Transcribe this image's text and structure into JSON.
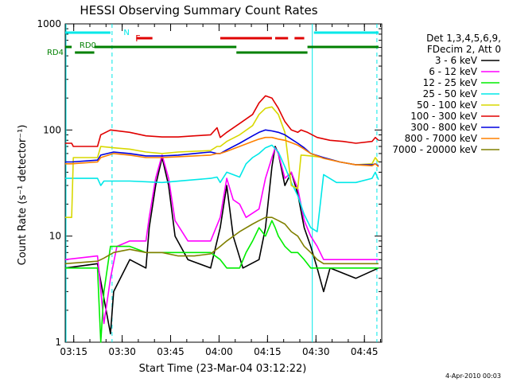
{
  "chart_data": {
    "type": "line",
    "title": "HESSI Observing Summary Count Rates",
    "xlabel": "Start Time (23-Mar-04 03:12:22)",
    "ylabel": "Count Rate (s⁻¹ detector⁻¹)",
    "y_scale": "log",
    "ylim": [
      1,
      1000
    ],
    "xlim_minutes": [
      0,
      98
    ],
    "x_ticks": [
      "03:15",
      "03:30",
      "03:45",
      "04:00",
      "04:15",
      "04:30",
      "04:45"
    ],
    "y_ticks": [
      "1",
      "10",
      "100",
      "1000"
    ],
    "footer": "4-Apr-2010 00:03",
    "legend": {
      "header": [
        "Det 1,3,4,5,6,9,",
        "FDecim 2, Att 0"
      ],
      "placement": "right"
    },
    "flags": [
      {
        "name": "N",
        "color": "#00e8e8"
      },
      {
        "name": "F",
        "color": "#e00000"
      },
      {
        "name": "RD0",
        "color": "#008000"
      },
      {
        "name": "RD4",
        "color": "#008000"
      }
    ],
    "series": [
      {
        "name": "3 - 6 keV",
        "color": "#000000",
        "points": [
          [
            0,
            5
          ],
          [
            10,
            5.5
          ],
          [
            14,
            1.2
          ],
          [
            15,
            3
          ],
          [
            20,
            6
          ],
          [
            25,
            5
          ],
          [
            26,
            12
          ],
          [
            28,
            30
          ],
          [
            30,
            55
          ],
          [
            32,
            30
          ],
          [
            34,
            10
          ],
          [
            38,
            6
          ],
          [
            45,
            5
          ],
          [
            48,
            12
          ],
          [
            50,
            30
          ],
          [
            52,
            10
          ],
          [
            55,
            5
          ],
          [
            60,
            6
          ],
          [
            62,
            12
          ],
          [
            64,
            45
          ],
          [
            65,
            70
          ],
          [
            66,
            60
          ],
          [
            68,
            30
          ],
          [
            70,
            40
          ],
          [
            72,
            25
          ],
          [
            74,
            12
          ],
          [
            76,
            8
          ],
          [
            78,
            5
          ],
          [
            80,
            3
          ],
          [
            82,
            5
          ],
          [
            90,
            4
          ],
          [
            97,
            5
          ]
        ]
      },
      {
        "name": "6 - 12 keV",
        "color": "#ff00ff",
        "points": [
          [
            0,
            6
          ],
          [
            10,
            6.5
          ],
          [
            12,
            1.5
          ],
          [
            14,
            4
          ],
          [
            16,
            8
          ],
          [
            20,
            9
          ],
          [
            25,
            9
          ],
          [
            26,
            15
          ],
          [
            28,
            35
          ],
          [
            30,
            58
          ],
          [
            32,
            35
          ],
          [
            34,
            14
          ],
          [
            38,
            9
          ],
          [
            45,
            9
          ],
          [
            48,
            15
          ],
          [
            50,
            35
          ],
          [
            52,
            22
          ],
          [
            54,
            20
          ],
          [
            56,
            15
          ],
          [
            60,
            18
          ],
          [
            62,
            35
          ],
          [
            64,
            55
          ],
          [
            65,
            68
          ],
          [
            66,
            60
          ],
          [
            68,
            35
          ],
          [
            70,
            40
          ],
          [
            72,
            28
          ],
          [
            74,
            14
          ],
          [
            76,
            10
          ],
          [
            78,
            8
          ],
          [
            80,
            6
          ],
          [
            82,
            6
          ],
          [
            90,
            6
          ],
          [
            97,
            6
          ]
        ]
      },
      {
        "name": "12 - 25 keV",
        "color": "#00ee00",
        "points": [
          [
            0,
            5
          ],
          [
            10,
            5
          ],
          [
            11,
            1
          ],
          [
            12,
            3
          ],
          [
            14,
            8
          ],
          [
            20,
            8
          ],
          [
            25,
            7
          ],
          [
            28,
            7
          ],
          [
            35,
            7
          ],
          [
            40,
            7
          ],
          [
            45,
            7
          ],
          [
            48,
            6
          ],
          [
            50,
            5
          ],
          [
            54,
            5
          ],
          [
            56,
            7
          ],
          [
            58,
            9
          ],
          [
            60,
            12
          ],
          [
            62,
            10
          ],
          [
            64,
            14
          ],
          [
            65,
            12
          ],
          [
            66,
            10
          ],
          [
            68,
            8
          ],
          [
            70,
            7
          ],
          [
            72,
            7
          ],
          [
            74,
            6
          ],
          [
            76,
            5
          ],
          [
            80,
            5
          ],
          [
            90,
            5
          ],
          [
            97,
            5
          ]
        ]
      },
      {
        "name": "25 - 50 keV",
        "color": "#00e8e8",
        "points": [
          [
            0,
            35
          ],
          [
            10,
            35
          ],
          [
            11,
            30
          ],
          [
            12,
            33
          ],
          [
            20,
            33
          ],
          [
            30,
            32
          ],
          [
            40,
            34
          ],
          [
            45,
            35
          ],
          [
            47,
            36
          ],
          [
            48,
            32
          ],
          [
            50,
            40
          ],
          [
            54,
            36
          ],
          [
            56,
            48
          ],
          [
            58,
            55
          ],
          [
            60,
            60
          ],
          [
            62,
            68
          ],
          [
            64,
            72
          ],
          [
            66,
            62
          ],
          [
            68,
            45
          ],
          [
            70,
            32
          ],
          [
            72,
            24
          ],
          [
            74,
            16
          ],
          [
            76,
            12
          ],
          [
            78,
            11
          ],
          [
            80,
            38
          ],
          [
            84,
            32
          ],
          [
            90,
            32
          ],
          [
            95,
            35
          ],
          [
            96,
            40
          ],
          [
            97,
            34
          ]
        ]
      },
      {
        "name": "50 - 100 keV",
        "color": "#d8d800",
        "points": [
          [
            0,
            15
          ],
          [
            2,
            15
          ],
          [
            2.5,
            55
          ],
          [
            10,
            55
          ],
          [
            11,
            70
          ],
          [
            15,
            68
          ],
          [
            20,
            66
          ],
          [
            25,
            62
          ],
          [
            30,
            60
          ],
          [
            35,
            62
          ],
          [
            40,
            63
          ],
          [
            45,
            64
          ],
          [
            47,
            70
          ],
          [
            48,
            70
          ],
          [
            50,
            78
          ],
          [
            54,
            90
          ],
          [
            58,
            110
          ],
          [
            60,
            140
          ],
          [
            62,
            160
          ],
          [
            64,
            165
          ],
          [
            66,
            140
          ],
          [
            68,
            95
          ],
          [
            70,
            30
          ],
          [
            72,
            28
          ],
          [
            73,
            58
          ],
          [
            76,
            57
          ],
          [
            80,
            55
          ],
          [
            85,
            50
          ],
          [
            90,
            47
          ],
          [
            95,
            48
          ],
          [
            96,
            55
          ],
          [
            97,
            50
          ]
        ]
      },
      {
        "name": "100 - 300 keV",
        "color": "#e00000",
        "points": [
          [
            0,
            75
          ],
          [
            2,
            75
          ],
          [
            2.5,
            70
          ],
          [
            10,
            70
          ],
          [
            11,
            90
          ],
          [
            14,
            100
          ],
          [
            20,
            95
          ],
          [
            25,
            88
          ],
          [
            30,
            86
          ],
          [
            35,
            86
          ],
          [
            40,
            88
          ],
          [
            45,
            90
          ],
          [
            47,
            105
          ],
          [
            48,
            85
          ],
          [
            50,
            95
          ],
          [
            54,
            115
          ],
          [
            58,
            140
          ],
          [
            60,
            180
          ],
          [
            62,
            210
          ],
          [
            64,
            200
          ],
          [
            66,
            160
          ],
          [
            68,
            120
          ],
          [
            70,
            100
          ],
          [
            72,
            95
          ],
          [
            73,
            100
          ],
          [
            75,
            95
          ],
          [
            78,
            85
          ],
          [
            82,
            80
          ],
          [
            86,
            78
          ],
          [
            90,
            75
          ],
          [
            95,
            78
          ],
          [
            96,
            85
          ],
          [
            97,
            80
          ]
        ]
      },
      {
        "name": "300 - 800 keV",
        "color": "#0000e0",
        "points": [
          [
            0,
            50
          ],
          [
            2,
            50
          ],
          [
            10,
            52
          ],
          [
            11,
            58
          ],
          [
            15,
            62
          ],
          [
            20,
            60
          ],
          [
            25,
            57
          ],
          [
            30,
            57
          ],
          [
            35,
            58
          ],
          [
            40,
            60
          ],
          [
            45,
            62
          ],
          [
            47,
            60
          ],
          [
            48,
            60
          ],
          [
            50,
            65
          ],
          [
            54,
            75
          ],
          [
            58,
            88
          ],
          [
            60,
            95
          ],
          [
            62,
            100
          ],
          [
            64,
            98
          ],
          [
            66,
            95
          ],
          [
            68,
            90
          ],
          [
            70,
            82
          ],
          [
            72,
            75
          ],
          [
            74,
            68
          ],
          [
            76,
            60
          ],
          [
            80,
            55
          ],
          [
            85,
            50
          ],
          [
            90,
            47
          ],
          [
            95,
            47
          ],
          [
            96,
            48
          ],
          [
            97,
            46
          ]
        ]
      },
      {
        "name": "800 - 7000 keV",
        "color": "#ff8000",
        "points": [
          [
            0,
            48
          ],
          [
            2,
            48
          ],
          [
            10,
            50
          ],
          [
            11,
            55
          ],
          [
            15,
            60
          ],
          [
            20,
            58
          ],
          [
            25,
            55
          ],
          [
            30,
            55
          ],
          [
            35,
            56
          ],
          [
            40,
            57
          ],
          [
            45,
            58
          ],
          [
            47,
            60
          ],
          [
            48,
            60
          ],
          [
            50,
            63
          ],
          [
            54,
            70
          ],
          [
            58,
            78
          ],
          [
            60,
            82
          ],
          [
            62,
            85
          ],
          [
            64,
            85
          ],
          [
            66,
            82
          ],
          [
            68,
            80
          ],
          [
            70,
            76
          ],
          [
            72,
            72
          ],
          [
            74,
            66
          ],
          [
            76,
            60
          ],
          [
            80,
            54
          ],
          [
            85,
            50
          ],
          [
            90,
            47
          ],
          [
            95,
            46
          ],
          [
            96,
            48
          ],
          [
            97,
            45
          ]
        ]
      },
      {
        "name": "7000 - 20000 keV",
        "color": "#808000",
        "points": [
          [
            0,
            5.5
          ],
          [
            10,
            5.8
          ],
          [
            12,
            6.2
          ],
          [
            15,
            7
          ],
          [
            20,
            7.5
          ],
          [
            25,
            7
          ],
          [
            30,
            7
          ],
          [
            35,
            6.5
          ],
          [
            40,
            6.5
          ],
          [
            45,
            6.8
          ],
          [
            48,
            8
          ],
          [
            50,
            9
          ],
          [
            54,
            11
          ],
          [
            58,
            13
          ],
          [
            60,
            14
          ],
          [
            62,
            15
          ],
          [
            64,
            15
          ],
          [
            66,
            14
          ],
          [
            68,
            13
          ],
          [
            70,
            11
          ],
          [
            72,
            10
          ],
          [
            74,
            8
          ],
          [
            76,
            7
          ],
          [
            78,
            6
          ],
          [
            80,
            5.5
          ],
          [
            85,
            5.5
          ],
          [
            90,
            5.5
          ],
          [
            95,
            5.5
          ],
          [
            97,
            5.5
          ]
        ]
      }
    ]
  }
}
